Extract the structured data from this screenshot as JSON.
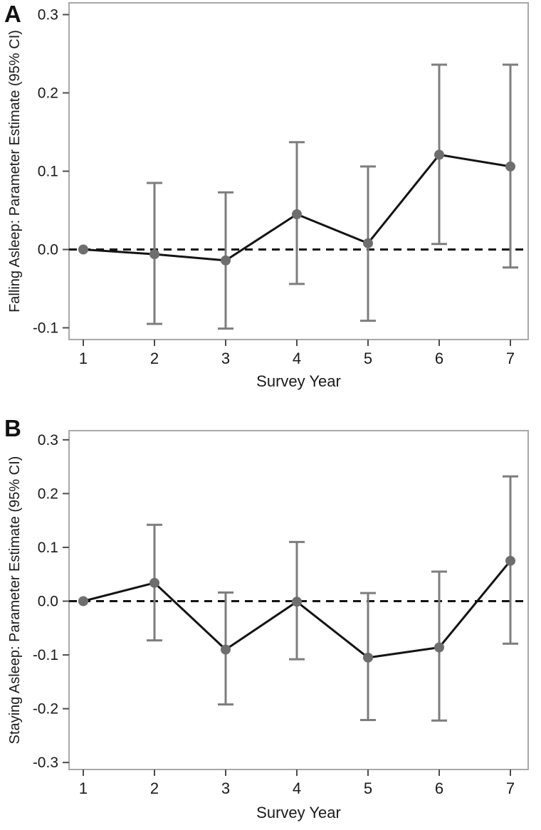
{
  "figure": {
    "panels": [
      {
        "label": "A",
        "chart_name": "falling-asleep"
      },
      {
        "label": "B",
        "chart_name": "staying-asleep"
      }
    ]
  },
  "colors": {
    "background": "#ffffff",
    "frame": "#a9a9a9",
    "tick": "#4d4d4d",
    "text": "#1a1a1a",
    "series_line": "#141414",
    "reference_line": "#141414",
    "error_bar": "#7d7d7d",
    "marker": "#6e6e6e"
  },
  "chart_data": [
    {
      "panel_label": "A",
      "type": "line",
      "title": "",
      "xlabel": "Survey Year",
      "ylabel": "Falling Asleep: Parameter Estimate (95% CI)",
      "x": [
        1,
        2,
        3,
        4,
        5,
        6,
        7
      ],
      "xticklabels": [
        "1",
        "2",
        "3",
        "4",
        "5",
        "6",
        "7"
      ],
      "series": [
        {
          "name": "Parameter Estimate (95% CI)",
          "values": [
            0.0,
            -0.006,
            -0.014,
            0.045,
            0.008,
            0.121,
            0.106
          ],
          "ci_low": [
            null,
            -0.095,
            -0.101,
            -0.044,
            -0.091,
            0.007,
            -0.023
          ],
          "ci_high": [
            null,
            0.085,
            0.073,
            0.137,
            0.106,
            0.236,
            0.236
          ]
        }
      ],
      "yticks": [
        -0.1,
        0.0,
        0.1,
        0.2,
        0.3
      ],
      "ylim": [
        -0.115,
        0.315
      ],
      "xlim": [
        0.8,
        7.25
      ],
      "reference_line_y": 0.0,
      "grid": false,
      "legend": "none"
    },
    {
      "panel_label": "B",
      "type": "line",
      "title": "",
      "xlabel": "Survey Year",
      "ylabel": "Staying Asleep: Parameter Estimate (95% CI)",
      "x": [
        1,
        2,
        3,
        4,
        5,
        6,
        7
      ],
      "xticklabels": [
        "1",
        "2",
        "3",
        "4",
        "5",
        "6",
        "7"
      ],
      "series": [
        {
          "name": "Parameter Estimate (95% CI)",
          "values": [
            0.0,
            0.034,
            -0.09,
            -0.001,
            -0.105,
            -0.086,
            0.075
          ],
          "ci_low": [
            null,
            -0.073,
            -0.192,
            -0.108,
            -0.221,
            -0.222,
            -0.079
          ],
          "ci_high": [
            null,
            0.142,
            0.016,
            0.11,
            0.015,
            0.055,
            0.232
          ]
        }
      ],
      "yticks": [
        -0.3,
        -0.2,
        -0.1,
        0.0,
        0.1,
        0.2,
        0.3
      ],
      "ylim": [
        -0.313,
        0.317
      ],
      "xlim": [
        0.8,
        7.25
      ],
      "reference_line_y": 0.0,
      "grid": false,
      "legend": "none"
    }
  ]
}
